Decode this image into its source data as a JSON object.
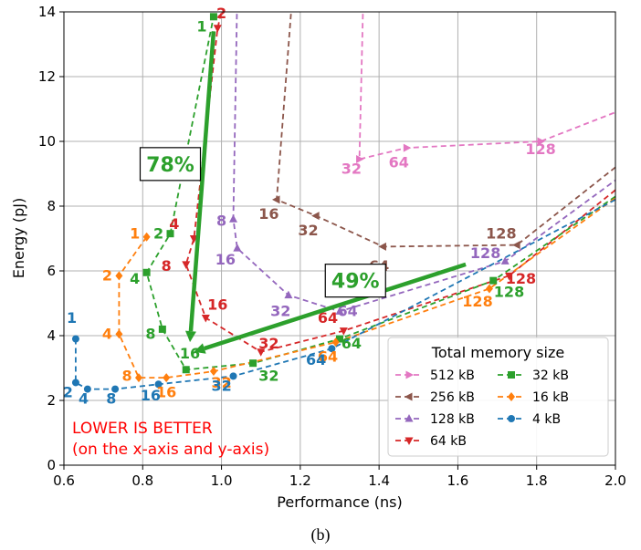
{
  "chart_data": {
    "type": "line",
    "xlabel": "Performance (ns)",
    "ylabel": "Energy (pJ)",
    "xlim": [
      0.6,
      2.0
    ],
    "ylim": [
      0,
      14
    ],
    "xticks": [
      0.6,
      0.8,
      1.0,
      1.2,
      1.4,
      1.6,
      1.8,
      2.0
    ],
    "yticks": [
      0,
      2,
      4,
      6,
      8,
      10,
      12,
      14
    ],
    "xtick_labels": [
      "0.6",
      "0.8",
      "1.0",
      "1.2",
      "1.4",
      "1.6",
      "1.8",
      "2.0"
    ],
    "ytick_labels": [
      "0",
      "2",
      "4",
      "6",
      "8",
      "10",
      "12",
      "14"
    ],
    "grid": true,
    "legend_title": "Total memory size",
    "legend_position": "bottom-right",
    "series": [
      {
        "name": "512 kB",
        "color": "#e377c2",
        "marker": "triangle-right",
        "points": [
          [
            1.36,
            14.5
          ],
          [
            1.35,
            9.45
          ],
          [
            1.47,
            9.8
          ],
          [
            1.81,
            10.0
          ],
          [
            2.0,
            10.9
          ]
        ],
        "labels": [
          {
            "t": "32",
            "x": 1.33,
            "y": 9.0
          },
          {
            "t": "64",
            "x": 1.45,
            "y": 9.2
          },
          {
            "t": "128",
            "x": 1.81,
            "y": 9.6
          }
        ]
      },
      {
        "name": "256 kB",
        "color": "#8c564b",
        "marker": "triangle-left",
        "points": [
          [
            1.18,
            14.5
          ],
          [
            1.14,
            8.2
          ],
          [
            1.24,
            7.7
          ],
          [
            1.41,
            6.75
          ],
          [
            1.75,
            6.8
          ],
          [
            2.0,
            9.2
          ]
        ],
        "labels": [
          {
            "t": "16",
            "x": 1.12,
            "y": 7.6
          },
          {
            "t": "32",
            "x": 1.22,
            "y": 7.1
          },
          {
            "t": "64",
            "x": 1.4,
            "y": 6.0
          },
          {
            "t": "128",
            "x": 1.71,
            "y": 7.0
          }
        ]
      },
      {
        "name": "128 kB",
        "color": "#9467bd",
        "marker": "triangle-up",
        "points": [
          [
            1.04,
            14.5
          ],
          [
            1.03,
            7.6
          ],
          [
            1.04,
            6.7
          ],
          [
            1.17,
            5.25
          ],
          [
            1.3,
            4.75
          ],
          [
            1.72,
            6.3
          ],
          [
            2.0,
            8.8
          ]
        ],
        "labels": [
          {
            "t": "8",
            "x": 1.0,
            "y": 7.4
          },
          {
            "t": "16",
            "x": 1.01,
            "y": 6.2
          },
          {
            "t": "32",
            "x": 1.15,
            "y": 4.6
          },
          {
            "t": "64",
            "x": 1.32,
            "y": 4.6
          },
          {
            "t": "128",
            "x": 1.67,
            "y": 6.4
          }
        ]
      },
      {
        "name": "64 kB",
        "color": "#d62728",
        "marker": "triangle-down",
        "points": [
          [
            1.01,
            14.5
          ],
          [
            0.99,
            13.5
          ],
          [
            0.93,
            7.0
          ],
          [
            0.91,
            6.2
          ],
          [
            0.96,
            4.55
          ],
          [
            1.1,
            3.5
          ],
          [
            1.31,
            4.15
          ],
          [
            1.73,
            5.85
          ],
          [
            2.0,
            8.5
          ]
        ],
        "labels": [
          {
            "t": "2",
            "x": 1.0,
            "y": 13.8
          },
          {
            "t": "4",
            "x": 0.88,
            "y": 7.3
          },
          {
            "t": "8",
            "x": 0.86,
            "y": 6.0
          },
          {
            "t": "16",
            "x": 0.99,
            "y": 4.8
          },
          {
            "t": "32",
            "x": 1.12,
            "y": 3.6
          },
          {
            "t": "64",
            "x": 1.27,
            "y": 4.4
          },
          {
            "t": "128",
            "x": 1.76,
            "y": 5.6
          }
        ]
      },
      {
        "name": "32 kB",
        "color": "#2ca02c",
        "marker": "square",
        "points": [
          [
            0.98,
            14.5
          ],
          [
            0.98,
            13.85
          ],
          [
            0.87,
            7.15
          ],
          [
            0.81,
            5.95
          ],
          [
            0.85,
            4.2
          ],
          [
            0.91,
            2.95
          ],
          [
            1.08,
            3.15
          ],
          [
            1.3,
            3.9
          ],
          [
            1.69,
            5.7
          ],
          [
            2.0,
            8.3
          ]
        ],
        "labels": [
          {
            "t": "1",
            "x": 0.95,
            "y": 13.4
          },
          {
            "t": "2",
            "x": 0.84,
            "y": 7.0
          },
          {
            "t": "4",
            "x": 0.78,
            "y": 5.6
          },
          {
            "t": "8",
            "x": 0.82,
            "y": 3.9
          },
          {
            "t": "16",
            "x": 0.92,
            "y": 3.3
          },
          {
            "t": "32",
            "x": 1.12,
            "y": 2.6
          },
          {
            "t": "64",
            "x": 1.33,
            "y": 3.6
          },
          {
            "t": "128",
            "x": 1.73,
            "y": 5.2
          }
        ]
      },
      {
        "name": "16 kB",
        "color": "#ff7f0e",
        "marker": "diamond",
        "points": [
          [
            0.81,
            7.05
          ],
          [
            0.74,
            5.85
          ],
          [
            0.74,
            4.05
          ],
          [
            0.79,
            2.7
          ],
          [
            0.86,
            2.7
          ],
          [
            0.98,
            2.9
          ],
          [
            1.29,
            3.8
          ],
          [
            1.68,
            5.45
          ],
          [
            2.0,
            8.25
          ]
        ],
        "labels": [
          {
            "t": "1",
            "x": 0.78,
            "y": 7.0
          },
          {
            "t": "2",
            "x": 0.71,
            "y": 5.7
          },
          {
            "t": "4",
            "x": 0.71,
            "y": 3.9
          },
          {
            "t": "8",
            "x": 0.76,
            "y": 2.6
          },
          {
            "t": "16",
            "x": 0.86,
            "y": 2.1
          },
          {
            "t": "32",
            "x": 1.0,
            "y": 2.4
          },
          {
            "t": "64",
            "x": 1.27,
            "y": 3.2
          },
          {
            "t": "128",
            "x": 1.65,
            "y": 4.9
          }
        ]
      },
      {
        "name": "4 kB",
        "color": "#1f77b4",
        "marker": "circle",
        "points": [
          [
            0.63,
            3.9
          ],
          [
            0.63,
            2.55
          ],
          [
            0.66,
            2.35
          ],
          [
            0.73,
            2.35
          ],
          [
            0.84,
            2.5
          ],
          [
            1.03,
            2.75
          ],
          [
            1.28,
            3.6
          ],
          [
            2.0,
            8.2
          ]
        ],
        "labels": [
          {
            "t": "1",
            "x": 0.62,
            "y": 4.4
          },
          {
            "t": "2",
            "x": 0.61,
            "y": 2.1
          },
          {
            "t": "4",
            "x": 0.65,
            "y": 1.9
          },
          {
            "t": "8",
            "x": 0.72,
            "y": 1.9
          },
          {
            "t": "16",
            "x": 0.82,
            "y": 2.0
          },
          {
            "t": "32",
            "x": 1.0,
            "y": 2.3
          },
          {
            "t": "64",
            "x": 1.24,
            "y": 3.1
          }
        ]
      }
    ],
    "annotations": {
      "arrow1": {
        "from": [
          0.98,
          13.4
        ],
        "to": [
          0.92,
          3.8
        ]
      },
      "arrow2": {
        "from": [
          1.62,
          6.2
        ],
        "to": [
          0.93,
          3.5
        ]
      },
      "box1": {
        "text": "78%",
        "x": 0.87,
        "y": 9.3
      },
      "box2": {
        "text": "49%",
        "x": 1.34,
        "y": 5.7
      },
      "note_line1": "LOWER IS BETTER",
      "note_line2": "(on the x-axis and y-axis)"
    }
  },
  "caption": "(b)"
}
